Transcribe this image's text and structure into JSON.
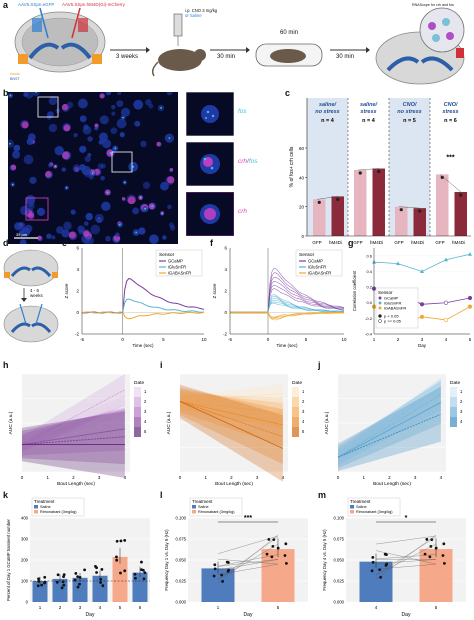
{
  "panel_labels": {
    "a": "a",
    "b": "b",
    "c": "c",
    "d": "d",
    "e": "e",
    "f": "f",
    "g": "g",
    "h": "h",
    "i": "i",
    "j": "j",
    "k": "k",
    "l": "l",
    "m": "m"
  },
  "panel_a": {
    "left_virus": "AAV5.SSpn.eGFP",
    "right_virus": "AAV5.SSpn.hM4D(Gi)-mCherry",
    "inj_text": "i.p. CNO 3 mg/kg",
    "inj_text2": "or Saline",
    "region1": "Insula",
    "region2": "BNST",
    "step1": "3 weeks",
    "step2": "30 min",
    "step3": "60 min",
    "step4": "30 min",
    "zoom_text": "RNAScope for crh and fos"
  },
  "panel_b": {
    "scale": "35 µm",
    "inset1": "fos",
    "inset2_a": "crh",
    "inset2_sep": "/",
    "inset2_b": "fos",
    "inset3": "crh",
    "colors": {
      "fos": "#38c6d6",
      "crh": "#e040c8",
      "dapi": "#1f3aa6"
    }
  },
  "panel_c": {
    "ylabel": "% of fos+ crh cells",
    "groups": [
      {
        "title1": "saline/",
        "title2": "no stress",
        "n": "n = 4",
        "bg": "#dce6f2"
      },
      {
        "title1": "saline/",
        "title2": "stress",
        "n": "n = 4",
        "bg": "#ffffff"
      },
      {
        "title1": "CNO/",
        "title2": "no stress",
        "n": "n = 5",
        "bg": "#dce6f2"
      },
      {
        "title1": "CNO/",
        "title2": "stress",
        "n": "n = 6",
        "bg": "#ffffff"
      }
    ],
    "sig": "***",
    "xticks": [
      "GFP",
      "hM4Di"
    ],
    "yticks": [
      "0",
      "20",
      "40",
      "60"
    ],
    "chart_data": {
      "type": "bar",
      "categories": [
        "GFP",
        "hM4Di"
      ],
      "series": [
        {
          "name": "saline/no stress",
          "values": [
            25,
            27
          ]
        },
        {
          "name": "saline/stress",
          "values": [
            45,
            46
          ]
        },
        {
          "name": "CNO/no stress",
          "values": [
            20,
            19
          ]
        },
        {
          "name": "CNO/stress",
          "values": [
            42,
            30
          ]
        }
      ],
      "ylim": [
        0,
        60
      ]
    }
  },
  "panel_d": {
    "weeks": "4 - 6",
    "weeks2": "weeks"
  },
  "panel_e": {
    "legend_title": "Sensor",
    "legend": [
      "GCaMP",
      "iGluSnFR",
      "iGABASnFR"
    ],
    "ylabel": "Z score",
    "xlabel": "Time (sec)",
    "xticks": [
      "-5",
      "0",
      "5",
      "10"
    ],
    "yticks": [
      "-2",
      "0",
      "2",
      "4",
      "6"
    ],
    "colors": [
      "#7a3fa0",
      "#56b4d3",
      "#f0a830"
    ]
  },
  "panel_f": {
    "legend_title": "Sensor",
    "legend": [
      "GCaMP",
      "iGluSnFR",
      "iGABASnFR"
    ],
    "ylabel": "Z score",
    "xlabel": "Time (sec)",
    "xticks": [
      "-5",
      "0",
      "5",
      "10"
    ],
    "yticks": [
      "-2",
      "0",
      "2",
      "4",
      "6"
    ]
  },
  "panel_g": {
    "legend_title": "Sensor",
    "legend": [
      "GCaMP",
      "iGluSnFR",
      "iGABASnFR"
    ],
    "sig_legend": [
      "p < 0.05",
      "p >= 0.05"
    ],
    "ylabel": "Correlation coefficient",
    "xlabel": "Day",
    "xticks": [
      "1",
      "2",
      "3",
      "4",
      "5"
    ],
    "yticks": [
      "-0.4",
      "-0.2",
      "0.0",
      "0.2",
      "0.4",
      "0.6"
    ],
    "chart_data": {
      "type": "line",
      "x": [
        1,
        2,
        3,
        4,
        5
      ],
      "series": [
        {
          "name": "GCaMP",
          "values": [
            0.18,
            0.12,
            -0.02,
            0.0,
            0.06
          ]
        },
        {
          "name": "iGluSnFR",
          "values": [
            0.52,
            0.5,
            0.4,
            0.55,
            0.62
          ]
        },
        {
          "name": "iGABASnFR",
          "values": [
            -0.05,
            -0.28,
            -0.18,
            -0.22,
            -0.05
          ]
        }
      ],
      "ylim": [
        -0.4,
        0.7
      ]
    }
  },
  "panel_h": {
    "ylabel": "AUC (a.u.)",
    "xlabel": "Bout Length (sec)",
    "legend_title": "Date",
    "legend_ticks": [
      "1",
      "2",
      "3",
      "4",
      "5"
    ],
    "xticks": [
      "0",
      "1",
      "2",
      "3",
      "4"
    ]
  },
  "panel_i": {
    "ylabel": "AUC (a.u.)",
    "xlabel": "Bout Length (sec)",
    "legend_title": "Date",
    "legend_ticks": [
      "1",
      "2",
      "3",
      "4",
      "5"
    ],
    "xticks": [
      "0",
      "1",
      "2",
      "3",
      "4"
    ]
  },
  "panel_j": {
    "ylabel": "AUC (a.u.)",
    "xlabel": "Bout Length (sec)",
    "legend_title": "Date",
    "legend_ticks": [
      "1",
      "2",
      "3",
      "4"
    ],
    "xticks": [
      "0",
      "1",
      "2",
      "3",
      "4"
    ]
  },
  "panel_k": {
    "legend_title": "Treatment",
    "legend": [
      "Saline",
      "Rimonabant (3mg/kg)"
    ],
    "ylabel": "Percent of Day 1 GCaMP transient number",
    "xlabel": "Day",
    "xticks": [
      "1",
      "2",
      "3",
      "4",
      "5",
      "6"
    ],
    "yticks": [
      "0",
      "100",
      "200",
      "300",
      "400"
    ],
    "chart_data": {
      "type": "bar",
      "categories": [
        "1",
        "2",
        "3",
        "4",
        "5",
        "6"
      ],
      "values": [
        100,
        110,
        115,
        125,
        215,
        140
      ],
      "ylim": [
        0,
        400
      ]
    }
  },
  "panel_l": {
    "legend_title": "Treatment",
    "legend": [
      "Saline",
      "Rimonabant (3mg/kg)"
    ],
    "ylabel": "Frequency Day 1 vs. Day 5 (Hz)",
    "xlabel": "Day",
    "xticks": [
      "1",
      "5"
    ],
    "yticks": [
      "0.000",
      "0.025",
      "0.050",
      "0.075",
      "0.100"
    ],
    "sig": "***",
    "chart_data": {
      "type": "bar",
      "categories": [
        "1",
        "5"
      ],
      "values": [
        0.04,
        0.063
      ],
      "ylim": [
        0,
        0.1
      ]
    }
  },
  "panel_m": {
    "legend_title": "Treatment",
    "legend": [
      "Saline",
      "Rimonabant (3mg/kg)"
    ],
    "ylabel": "Frequency Day 4 vs. Day 5 (Hz)",
    "xlabel": "Day",
    "xticks": [
      "4",
      "5"
    ],
    "yticks": [
      "0.000",
      "0.025",
      "0.050",
      "0.075",
      "0.100"
    ],
    "sig": "*",
    "chart_data": {
      "type": "bar",
      "categories": [
        "4",
        "5"
      ],
      "values": [
        0.048,
        0.063
      ],
      "ylim": [
        0,
        0.1
      ]
    }
  }
}
